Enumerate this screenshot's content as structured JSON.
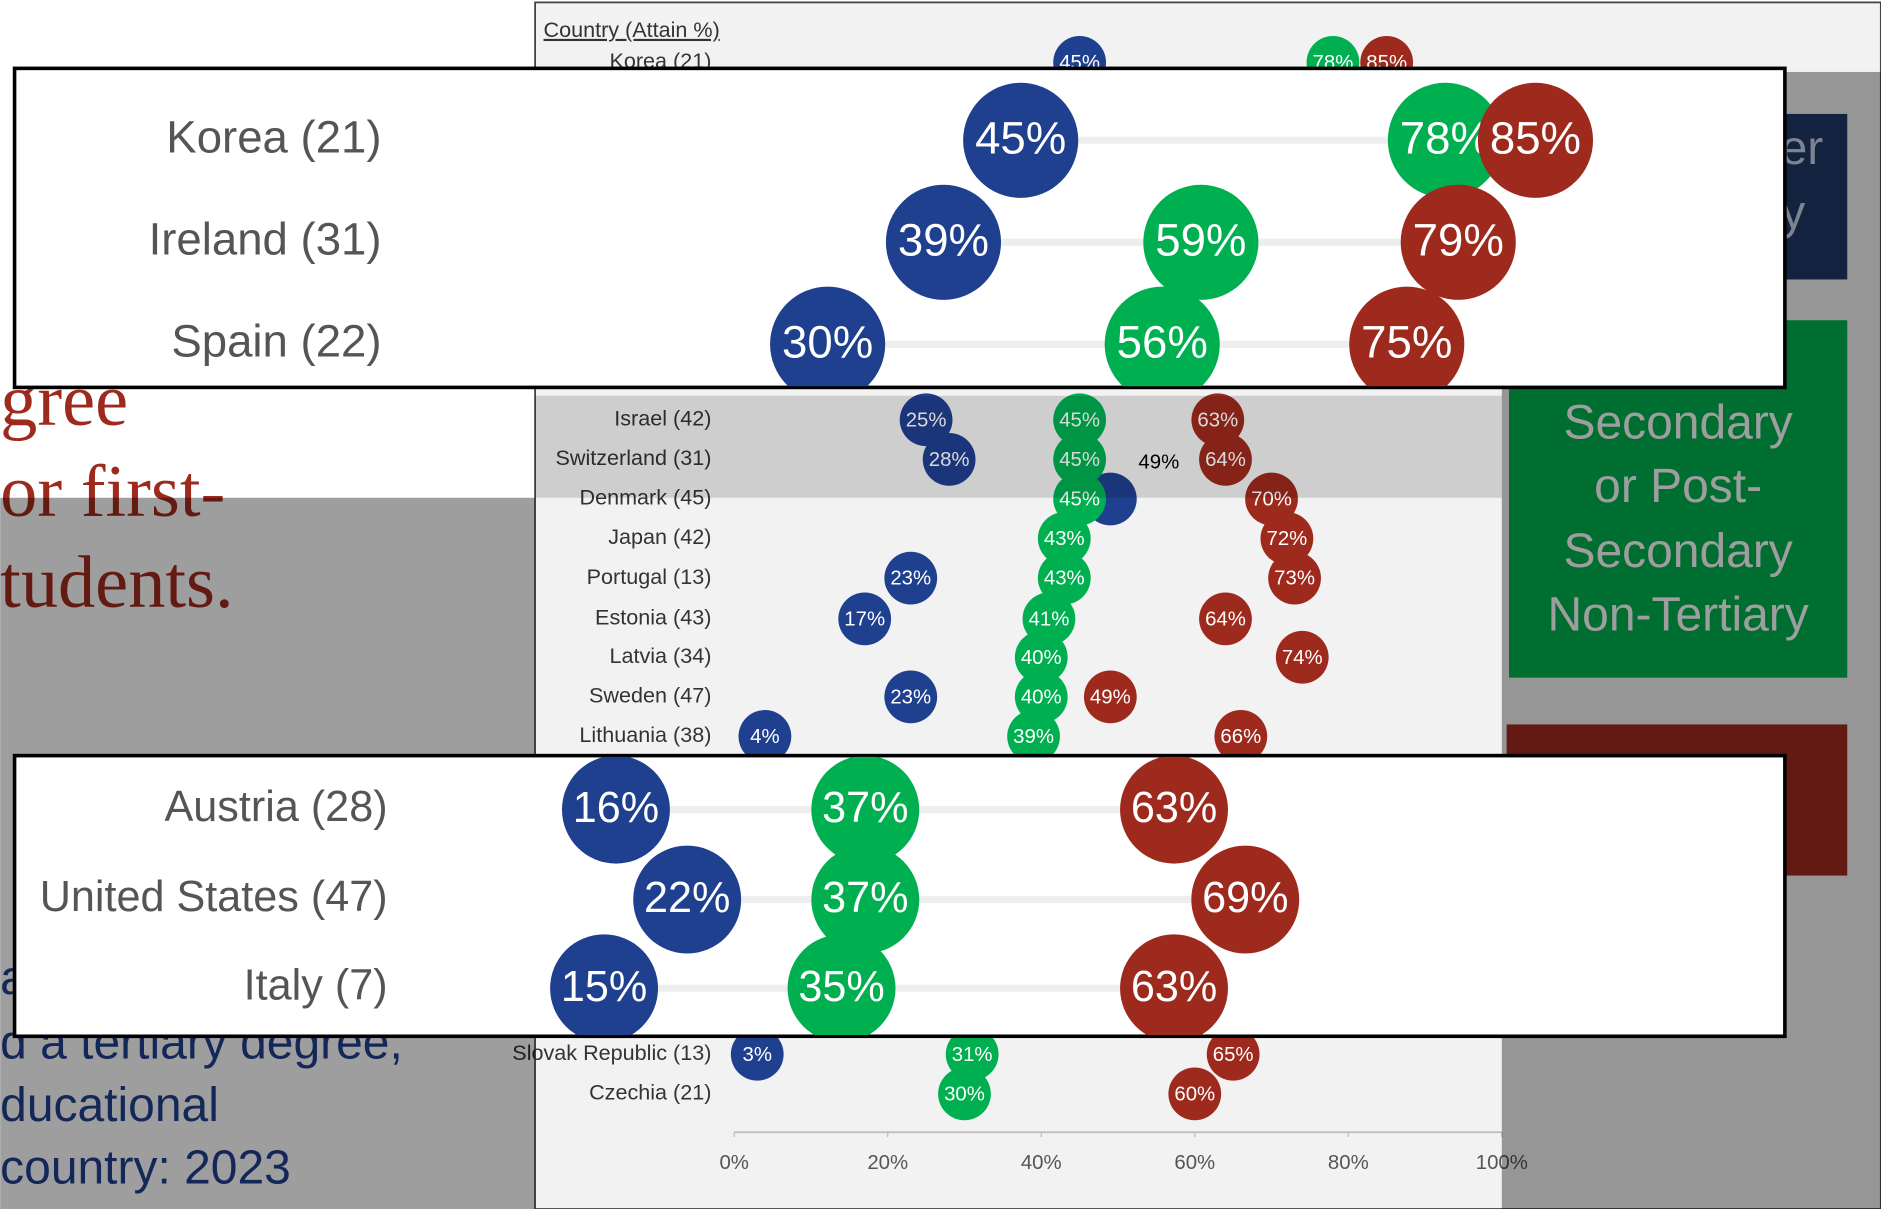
{
  "slide": {
    "headline": [
      "gree",
      "or first-",
      "tudents."
    ],
    "caption": [
      "a",
      "d a tertiary degree,",
      "ducational",
      "country: 2023"
    ],
    "legend_fragments": [
      "er",
      "y"
    ],
    "legend_box": [
      "Secondary",
      "or Post-",
      "Secondary",
      "Non-Tertiary"
    ]
  },
  "chart_data": [
    {
      "type": "dot",
      "y_label": "Country (Attain %)",
      "categories": [
        "Korea (21)",
        "Israel (42)",
        "Switzerland (31)",
        "Denmark (45)",
        "Japan (42)",
        "Portugal (13)",
        "Estonia (43)",
        "Latvia (34)",
        "Sweden (47)",
        "Lithuania (38)",
        "Slovak Republic (13)",
        "Czechia (21)"
      ],
      "series": [
        {
          "color": "#1f3f8f",
          "values": [
            45,
            25,
            28,
            49,
            null,
            23,
            17,
            null,
            23,
            4,
            3,
            null
          ],
          "value_labels": [
            "45%",
            "25%",
            "28%",
            null,
            null,
            "23%",
            "17%",
            null,
            "23%",
            "4%",
            "3%",
            null
          ]
        },
        {
          "name": "Secondary or Post-Secondary Non-Tertiary",
          "color": "#00b050",
          "values": [
            78,
            45,
            45,
            45,
            43,
            43,
            41,
            40,
            40,
            39,
            31,
            30
          ],
          "value_labels": [
            "78%",
            "45%",
            "45%",
            "45%",
            "43%",
            "43%",
            "41%",
            "40%",
            "40%",
            "39%",
            "31%",
            "30%"
          ]
        },
        {
          "color": "#9e2a1e",
          "values": [
            85,
            63,
            64,
            70,
            72,
            73,
            64,
            74,
            49,
            66,
            65,
            60
          ],
          "value_labels": [
            "85%",
            "63%",
            "64%",
            "70%",
            "72%",
            "73%",
            "64%",
            "74%",
            "49%",
            "66%",
            "65%",
            "60%"
          ]
        }
      ],
      "annotations": [
        "49%"
      ],
      "xlim": [
        0,
        100
      ],
      "xticks": [
        {
          "value": 0,
          "label": "0%"
        },
        {
          "value": 20,
          "label": "20%"
        },
        {
          "value": 40,
          "label": "40%"
        },
        {
          "value": 60,
          "label": "60%"
        },
        {
          "value": 80,
          "label": "80%"
        },
        {
          "value": 100,
          "label": "100%"
        }
      ]
    },
    {
      "type": "dot",
      "categories": [
        "Korea (21)",
        "Ireland (31)",
        "Spain (22)"
      ],
      "series": [
        {
          "color": "#1f3f8f",
          "values": [
            45,
            39,
            30
          ],
          "value_labels": [
            "45%",
            "39%",
            "30%"
          ]
        },
        {
          "color": "#00b050",
          "values": [
            78,
            59,
            56
          ],
          "value_labels": [
            "78%",
            "59%",
            "56%"
          ]
        },
        {
          "color": "#9e2a1e",
          "values": [
            85,
            79,
            75
          ],
          "value_labels": [
            "85%",
            "79%",
            "75%"
          ]
        }
      ]
    },
    {
      "type": "dot",
      "categories": [
        "Austria (28)",
        "United States (47)",
        "Italy (7)"
      ],
      "series": [
        {
          "color": "#1f3f8f",
          "values": [
            16,
            22,
            15
          ],
          "value_labels": [
            "16%",
            "22%",
            "15%"
          ]
        },
        {
          "color": "#00b050",
          "values": [
            37,
            37,
            35
          ],
          "value_labels": [
            "37%",
            "37%",
            "35%"
          ]
        },
        {
          "color": "#9e2a1e",
          "values": [
            63,
            69,
            63
          ],
          "value_labels": [
            "63%",
            "69%",
            "63%"
          ]
        }
      ]
    }
  ]
}
